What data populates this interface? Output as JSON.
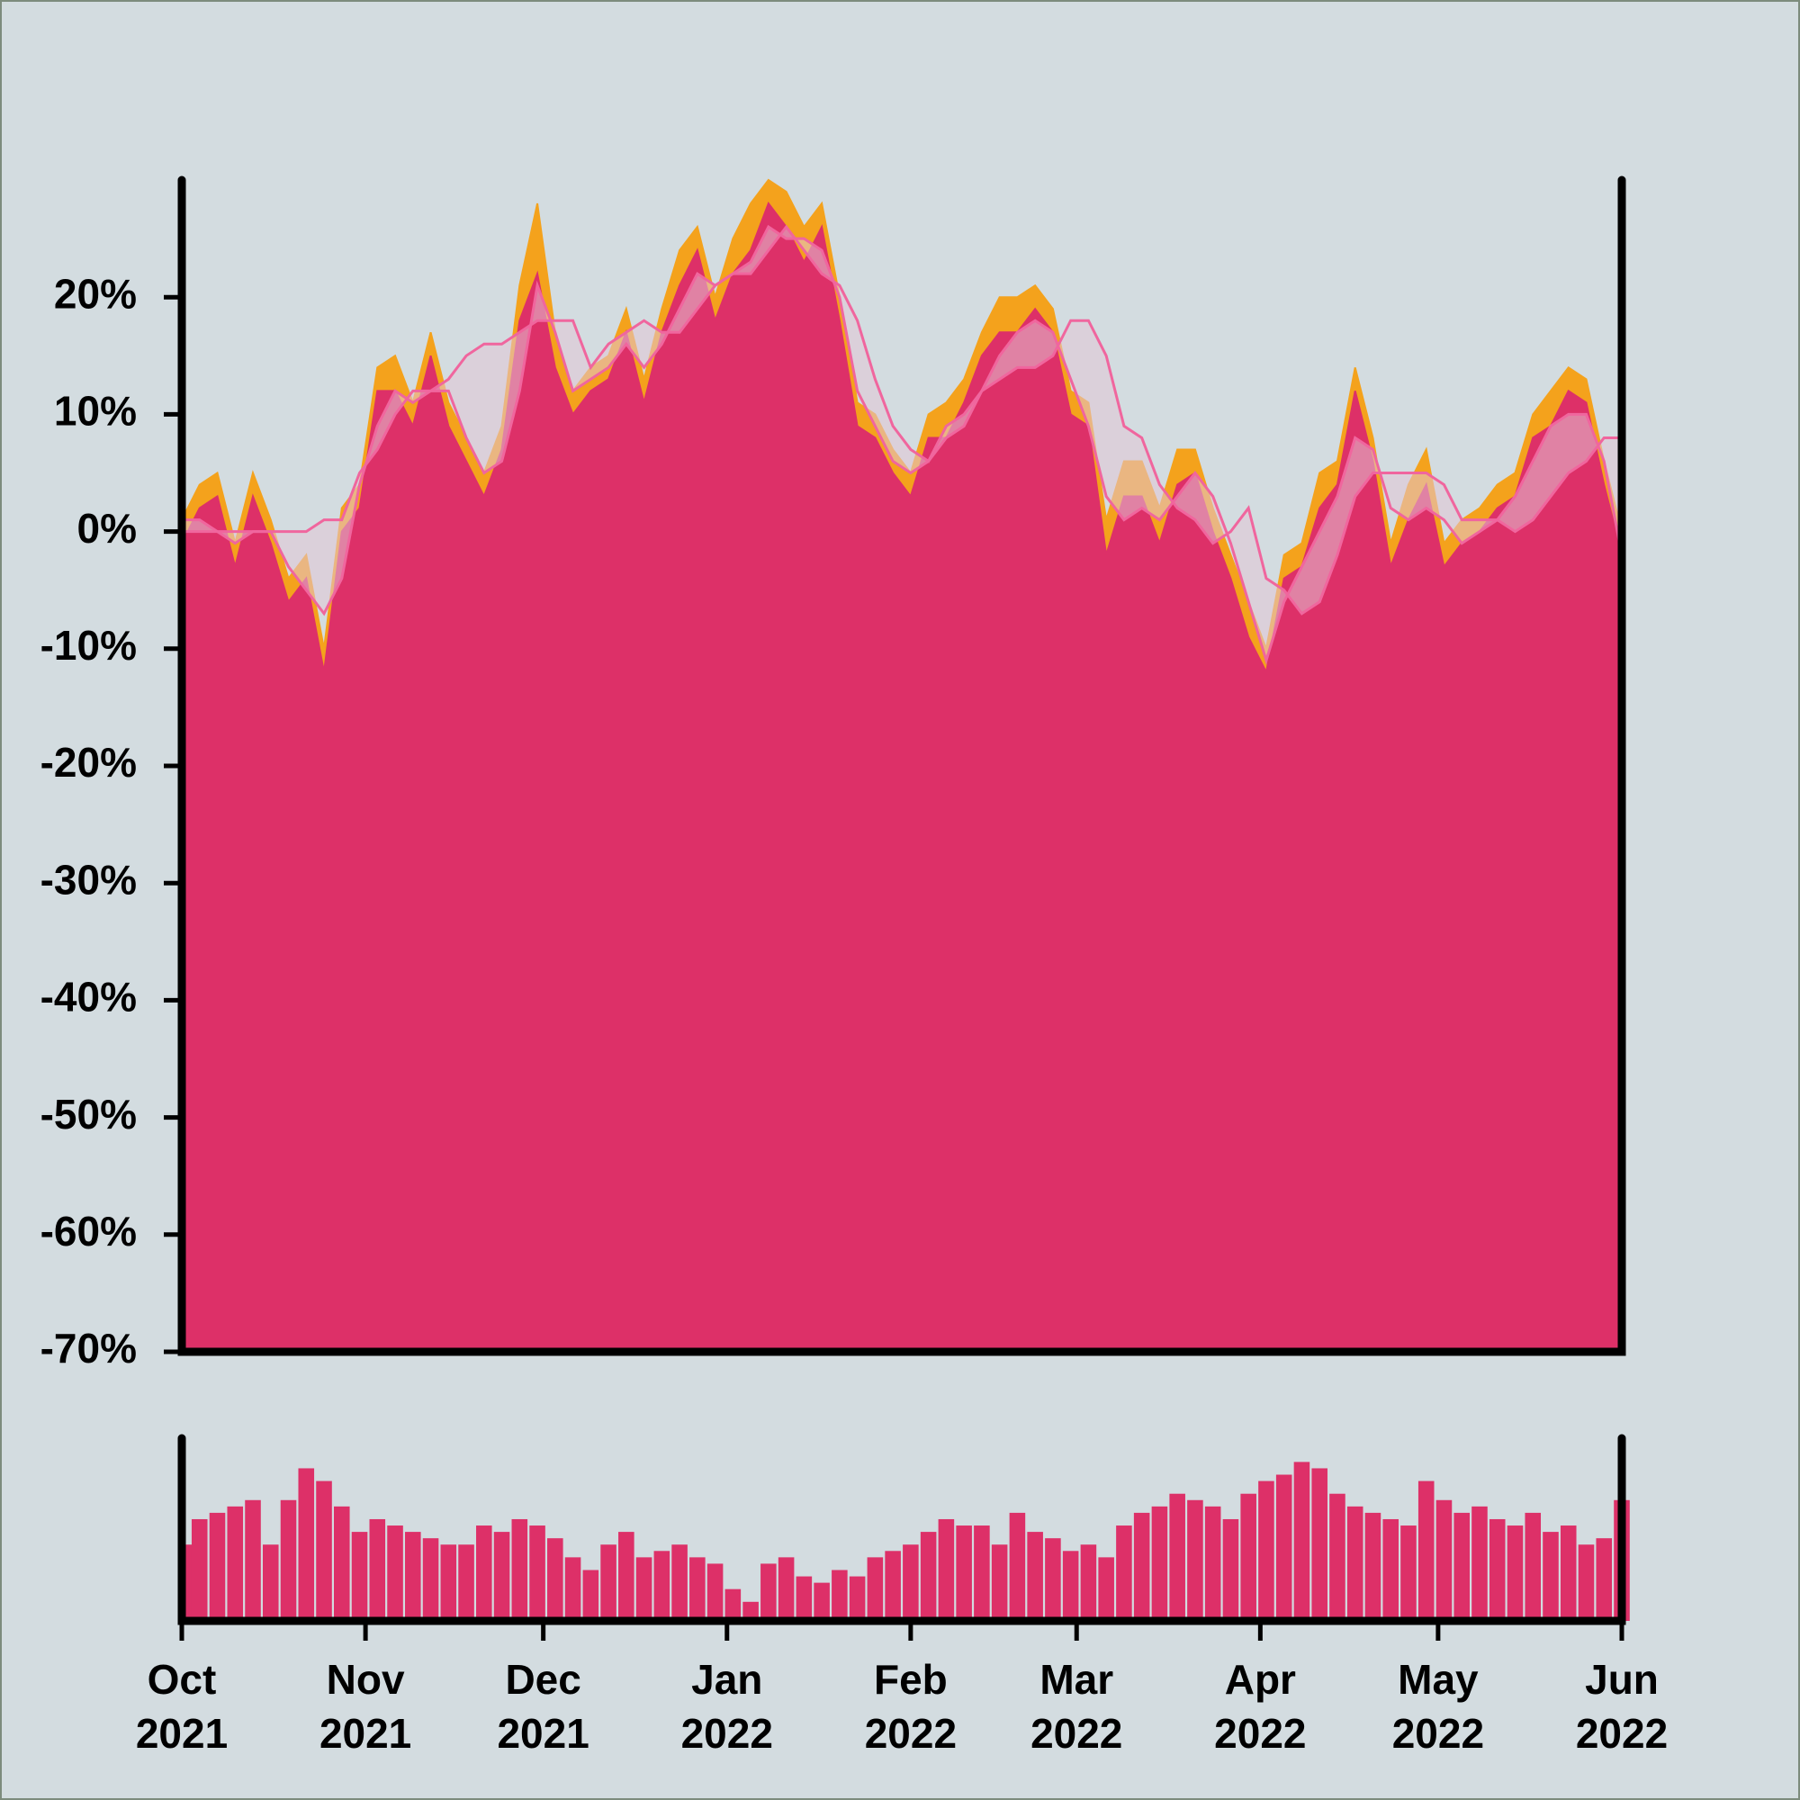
{
  "chart_data": [
    {
      "type": "area",
      "xlim": [
        "2021-10",
        "2022-06"
      ],
      "ylim": [
        -70,
        30
      ],
      "yticks": [
        {
          "value": -70,
          "label": "-70%"
        },
        {
          "value": -60,
          "label": "-60%"
        },
        {
          "value": -50,
          "label": "-50%"
        },
        {
          "value": -40,
          "label": "-40%"
        },
        {
          "value": -30,
          "label": "-30%"
        },
        {
          "value": -20,
          "label": "-20%"
        },
        {
          "value": -10,
          "label": "-10%"
        },
        {
          "value": 0,
          "label": "0%"
        },
        {
          "value": 10,
          "label": "10%"
        },
        {
          "value": 20,
          "label": "20%"
        }
      ],
      "band_color": "#e2c6d6",
      "series": [
        {
          "kind": "area",
          "color": "#f4a21c",
          "values": [
            1,
            4,
            5,
            -1,
            5,
            1,
            -4,
            -2,
            -10,
            2,
            4,
            14,
            15,
            11,
            17,
            11,
            8,
            5,
            9,
            21,
            28,
            17,
            12,
            14,
            15,
            19,
            13,
            19,
            24,
            26,
            20,
            25,
            28,
            30,
            29,
            26,
            28,
            20,
            11,
            10,
            7,
            5,
            10,
            11,
            13,
            17,
            20,
            20,
            21,
            19,
            12,
            11,
            1,
            6,
            6,
            2,
            7,
            7,
            2,
            -2,
            -6,
            -10,
            -2,
            -1,
            5,
            6,
            14,
            8,
            -1,
            4,
            7,
            -1,
            1,
            2,
            4,
            5,
            10,
            12,
            14,
            13,
            6,
            0
          ]
        },
        {
          "kind": "area",
          "color": "#dd3068",
          "values": [
            -1,
            2,
            3,
            -3,
            3,
            -1,
            -6,
            -4,
            -12,
            0,
            2,
            12,
            12,
            9,
            15,
            9,
            6,
            3,
            7,
            18,
            22,
            14,
            10,
            12,
            13,
            17,
            11,
            17,
            21,
            24,
            18,
            22,
            24,
            28,
            26,
            23,
            26,
            18,
            9,
            8,
            5,
            3,
            8,
            8,
            11,
            15,
            17,
            17,
            19,
            17,
            10,
            9,
            -2,
            3,
            3,
            -1,
            4,
            5,
            0,
            -4,
            -9,
            -12,
            -4,
            -3,
            2,
            4,
            12,
            6,
            -3,
            1,
            4,
            -3,
            -1,
            0,
            2,
            3,
            8,
            9,
            12,
            11,
            4,
            -2
          ]
        },
        {
          "kind": "line",
          "color": "#f0669e",
          "values": [
            1,
            1,
            0,
            -1,
            0,
            0,
            -3,
            -5,
            -7,
            -4,
            4,
            9,
            12,
            11,
            12,
            12,
            8,
            5,
            6,
            12,
            21,
            17,
            12,
            13,
            14,
            16,
            14,
            16,
            19,
            22,
            21,
            22,
            23,
            26,
            25,
            25,
            24,
            20,
            12,
            9,
            6,
            5,
            6,
            8,
            9,
            12,
            15,
            17,
            18,
            17,
            13,
            9,
            3,
            1,
            2,
            1,
            3,
            5,
            3,
            -1,
            -6,
            -11,
            -6,
            -3,
            0,
            3,
            8,
            7,
            2,
            1,
            2,
            1,
            -1,
            0,
            1,
            3,
            6,
            9,
            10,
            10,
            6,
            -2
          ]
        },
        {
          "kind": "line",
          "color": "#f0669e",
          "values": [
            0,
            0,
            0,
            0,
            0,
            0,
            0,
            0,
            1,
            1,
            5,
            7,
            10,
            12,
            12,
            13,
            15,
            16,
            16,
            17,
            18,
            18,
            18,
            14,
            16,
            17,
            18,
            17,
            17,
            19,
            21,
            22,
            22,
            24,
            26,
            24,
            22,
            21,
            18,
            13,
            9,
            7,
            6,
            9,
            10,
            12,
            13,
            14,
            14,
            15,
            18,
            18,
            15,
            9,
            8,
            4,
            2,
            1,
            -1,
            0,
            2,
            -4,
            -5,
            -7,
            -6,
            -2,
            3,
            5,
            5,
            5,
            5,
            4,
            1,
            1,
            1,
            0,
            1,
            3,
            5,
            6,
            8,
            8
          ]
        }
      ]
    },
    {
      "type": "bar",
      "xlim": [
        "2021-10",
        "2022-06"
      ],
      "xticks": [
        {
          "value": "2021-10",
          "label": "Oct\n2021"
        },
        {
          "value": "2021-11",
          "label": "Nov\n2021"
        },
        {
          "value": "2021-12",
          "label": "Dec\n2021"
        },
        {
          "value": "2022-01",
          "label": "Jan\n2022"
        },
        {
          "value": "2022-02",
          "label": "Feb\n2022"
        },
        {
          "value": "2022-03",
          "label": "Mar\n2022"
        },
        {
          "value": "2022-04",
          "label": "Apr\n2022"
        },
        {
          "value": "2022-05",
          "label": "May\n2022"
        },
        {
          "value": "2022-06",
          "label": "Jun\n2022"
        }
      ],
      "color": "#dd3068",
      "values": [
        60,
        80,
        85,
        90,
        95,
        60,
        95,
        120,
        110,
        90,
        70,
        80,
        75,
        70,
        65,
        60,
        60,
        75,
        70,
        80,
        75,
        65,
        50,
        40,
        60,
        70,
        50,
        55,
        60,
        50,
        45,
        25,
        15,
        45,
        50,
        35,
        30,
        40,
        35,
        50,
        55,
        60,
        70,
        80,
        75,
        75,
        60,
        85,
        70,
        65,
        55,
        60,
        50,
        75,
        85,
        90,
        100,
        95,
        90,
        80,
        100,
        110,
        115,
        125,
        120,
        100,
        90,
        85,
        80,
        75,
        110,
        95,
        85,
        90,
        80,
        75,
        85,
        70,
        75,
        60,
        65,
        95
      ]
    }
  ]
}
